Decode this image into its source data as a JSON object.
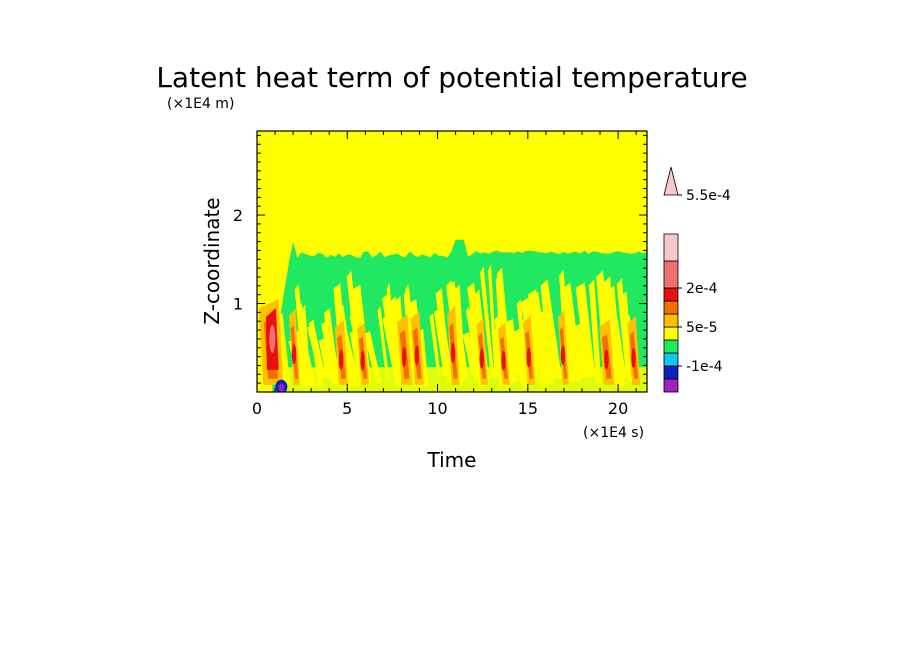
{
  "chart_data": {
    "type": "heatmap",
    "title": "Latent heat term of potential temperature",
    "xlabel": "Time",
    "ylabel": "Z-coordinate",
    "x_unit": "(×1E4 s)",
    "y_unit": "(×1E4 m)",
    "xlim": [
      0,
      21.6
    ],
    "ylim": [
      0,
      2.95
    ],
    "x_ticks": [
      "0",
      "5",
      "10",
      "15",
      "20"
    ],
    "y_ticks": [
      "1",
      "2"
    ],
    "x_tick_values": [
      0,
      5,
      10,
      15,
      20
    ],
    "y_tick_values": [
      1,
      2
    ],
    "background_level_color": "#ffff00",
    "active_layer_top": [
      1.55,
      1.7
    ],
    "convective_bursts_x": [
      0.9,
      2.2,
      4.8,
      6.0,
      8.3,
      9.0,
      11.0,
      12.6,
      13.8,
      15.2,
      17.1,
      19.5,
      21.0
    ],
    "colorbar": {
      "labels": [
        "5.5e-4",
        "2e-4",
        "5e-5",
        "-1e-4"
      ],
      "label_levels": [
        0.00055,
        0.0002,
        5e-05,
        -0.0001
      ],
      "colors": [
        "#a020c0",
        "#1020c0",
        "#10c8e8",
        "#20e860",
        "#ffff00",
        "#ffc000",
        "#f07000",
        "#e81010",
        "#f07070",
        "#f8c8c8"
      ],
      "extend_top": true
    }
  }
}
